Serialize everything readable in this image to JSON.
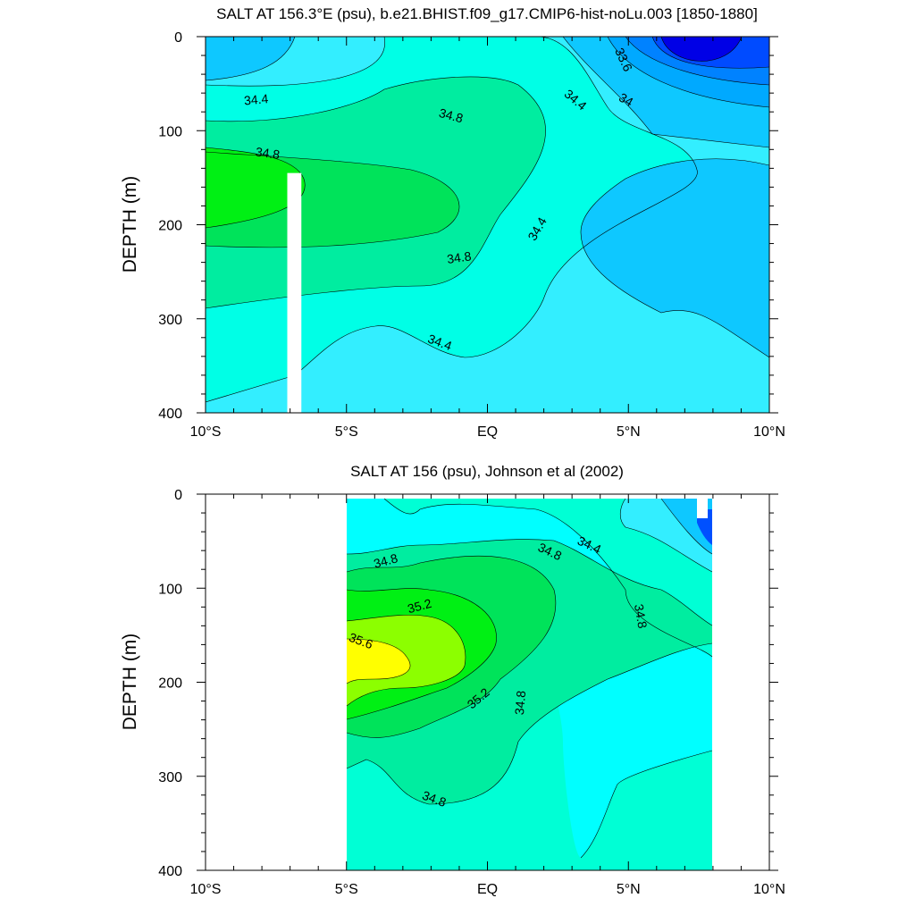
{
  "chart_data": [
    {
      "type": "contour",
      "title": "SALT AT 156.3°E (psu), b.e21.BHIST.f09_g17.CMIP6-hist-noLu.003 [1850-1880]",
      "xlabel": "",
      "ylabel": "DEPTH (m)",
      "x_range": [
        -10,
        10
      ],
      "y_range": [
        0,
        400
      ],
      "y_reversed": true,
      "x_ticks": [
        -10,
        -5,
        0,
        5,
        10
      ],
      "x_tick_labels": [
        "10°S",
        "5°S",
        "EQ",
        "5°N",
        "10°N"
      ],
      "y_ticks": [
        0,
        100,
        200,
        300,
        400
      ],
      "y_tick_labels": [
        "0",
        "100",
        "200",
        "300",
        "400"
      ],
      "contour_labels": [
        {
          "text": "34.4",
          "x": -8.2,
          "y": 68,
          "rot": -5
        },
        {
          "text": "34.8",
          "x": -7.8,
          "y": 125,
          "rot": 8
        },
        {
          "text": "34.8",
          "x": -1.3,
          "y": 85,
          "rot": 15
        },
        {
          "text": "34.8",
          "x": -1.0,
          "y": 236,
          "rot": -8
        },
        {
          "text": "34.4",
          "x": -1.7,
          "y": 326,
          "rot": 20
        },
        {
          "text": "34.4",
          "x": 1.8,
          "y": 205,
          "rot": -60
        },
        {
          "text": "34.4",
          "x": 3.1,
          "y": 68,
          "rot": 40
        },
        {
          "text": "34",
          "x": 4.9,
          "y": 68,
          "rot": 30
        },
        {
          "text": "33.6",
          "x": 4.8,
          "y": 25,
          "rot": 65
        }
      ],
      "missing_data": [
        {
          "x": [
            -7.1,
            -6.6
          ],
          "y": [
            145,
            400
          ]
        }
      ]
    },
    {
      "type": "contour",
      "title": "SALT AT 156 (psu), Johnson et al (2002)",
      "xlabel": "",
      "ylabel": "DEPTH (m)",
      "x_range": [
        -10,
        10
      ],
      "y_range": [
        0,
        400
      ],
      "y_reversed": true,
      "data_extent_x": [
        -5,
        8
      ],
      "x_ticks": [
        -10,
        -5,
        0,
        5,
        10
      ],
      "x_tick_labels": [
        "10°S",
        "5°S",
        "EQ",
        "5°N",
        "10°N"
      ],
      "y_ticks": [
        0,
        100,
        200,
        300,
        400
      ],
      "y_tick_labels": [
        "0",
        "100",
        "200",
        "300",
        "400"
      ],
      "contour_labels": [
        {
          "text": "34.8",
          "x": -3.6,
          "y": 72,
          "rot": -15
        },
        {
          "text": "35.2",
          "x": -2.4,
          "y": 120,
          "rot": -15
        },
        {
          "text": "35.6",
          "x": -4.5,
          "y": 157,
          "rot": 20
        },
        {
          "text": "35.2",
          "x": -0.3,
          "y": 218,
          "rot": -40
        },
        {
          "text": "34.8",
          "x": 1.2,
          "y": 222,
          "rot": -85
        },
        {
          "text": "34.8",
          "x": -1.9,
          "y": 325,
          "rot": 20
        },
        {
          "text": "34.8",
          "x": 2.2,
          "y": 62,
          "rot": 25
        },
        {
          "text": "34.4",
          "x": 3.6,
          "y": 55,
          "rot": 25
        },
        {
          "text": "34.8",
          "x": 5.4,
          "y": 130,
          "rot": 80
        }
      ]
    }
  ]
}
